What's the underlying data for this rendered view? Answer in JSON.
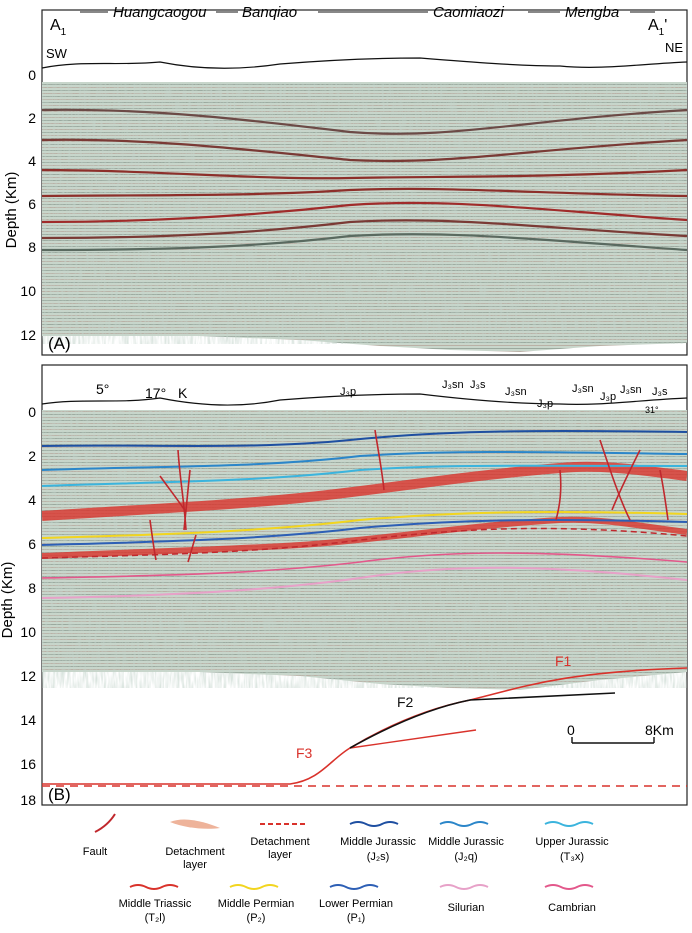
{
  "panel_a": {
    "letter": "(A)",
    "left_label": "A",
    "left_sub": "1",
    "right_label": "A",
    "right_sub": "1",
    "right_prime": "'",
    "sw": "SW",
    "ne": "NE",
    "places": [
      "Huangcaogou",
      "Banqiao",
      "Caomiaozi",
      "Mengba"
    ],
    "y_axis_title": "Depth (Km)",
    "y_ticks": [
      "0",
      "2",
      "4",
      "6",
      "8",
      "10",
      "12"
    ]
  },
  "panel_b": {
    "letter": "(B)",
    "y_axis_title": "Depth (Km)",
    "y_ticks": [
      "0",
      "2",
      "4",
      "6",
      "8",
      "10",
      "12",
      "14",
      "16",
      "18"
    ],
    "dip_left": "5°",
    "dip_mid": "17°",
    "dip_right": "31°",
    "k": "K",
    "surface_labels": [
      "J₃p",
      "J₃sn",
      "J₃s",
      "J₃sn",
      "J₃p",
      "J₃sn",
      "J₃p",
      "J₃sn",
      "J₃s"
    ],
    "faults": [
      "F1",
      "F2",
      "F3"
    ],
    "scale_start": "0",
    "scale_end": "8Km"
  },
  "legend": {
    "items": [
      {
        "label": "Fault",
        "sub": "",
        "color": "#c0282d"
      },
      {
        "label": "Detachment",
        "sub": "layer",
        "color": "#eeb39a"
      },
      {
        "label": "Detachment",
        "sub": "layer",
        "color": "#d9322b"
      },
      {
        "label": "Middle Jurassic",
        "sub": "(J₂s)",
        "color": "#1e4fa1"
      },
      {
        "label": "Middle Jurassic",
        "sub": "(J₂q)",
        "color": "#2b86c9"
      },
      {
        "label": "Upper Jurassic",
        "sub": "(T₃x)",
        "color": "#3bb4dd"
      },
      {
        "label": "Middle Triassic",
        "sub": "(T₂l)",
        "color": "#d9322b"
      },
      {
        "label": "Middle Permian",
        "sub": "(P₂)",
        "color": "#f2d51f"
      },
      {
        "label": "Lower Permian",
        "sub": "(P₁)",
        "color": "#2d5fb5"
      },
      {
        "label": "Silurian",
        "sub": "",
        "color": "#e7a1c8"
      },
      {
        "label": "Cambrian",
        "sub": "",
        "color": "#e3588b"
      }
    ]
  }
}
